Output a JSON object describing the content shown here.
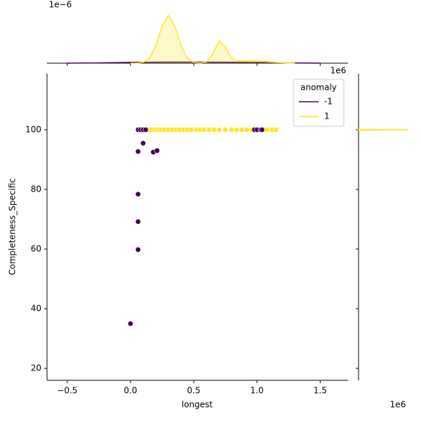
{
  "chart_data": {
    "type": "scatter",
    "x_label": "longest",
    "y_label": "Completeness_Specific",
    "x_offset": "1e6",
    "legend_title": "anomaly",
    "legend": "upper right",
    "xlim": [
      -0.66,
      1.72
    ],
    "ylim": [
      16,
      118.8
    ],
    "xticks": [
      {
        "value": -0.5,
        "label": "−0.5"
      },
      {
        "value": 0,
        "label": "0.0"
      },
      {
        "value": 0.5,
        "label": "0.5"
      },
      {
        "value": 1,
        "label": "1.0"
      },
      {
        "value": 1.5,
        "label": "1.5"
      }
    ],
    "yticks": [
      20,
      40,
      60,
      80,
      100
    ],
    "series": [
      {
        "name": "-1",
        "color": "#440154",
        "x": [
          0.0,
          0.06,
          0.06,
          0.06,
          0.06,
          0.1,
          0.18,
          0.21,
          0.06,
          0.08,
          0.1,
          0.12,
          0.98,
          1.0,
          1.03,
          1.04
        ],
        "values": [
          35,
          59.8,
          69.2,
          78.4,
          92.7,
          95.5,
          92.5,
          93,
          100,
          100,
          100,
          100,
          100,
          100,
          100,
          100
        ]
      },
      {
        "name": "1",
        "color": "#fde725",
        "x": [
          0.13,
          0.15,
          0.17,
          0.19,
          0.21,
          0.23,
          0.25,
          0.27,
          0.3,
          0.33,
          0.36,
          0.39,
          0.42,
          0.45,
          0.48,
          0.52,
          0.55,
          0.58,
          0.62,
          0.66,
          0.7,
          0.75,
          0.8,
          0.84,
          0.88,
          0.92,
          0.96,
          1.0,
          1.02,
          1.05,
          1.08,
          1.12,
          1.15
        ],
        "values": [
          100,
          100,
          100,
          100,
          100,
          100,
          100,
          100,
          100,
          100,
          100,
          100,
          100,
          100,
          100,
          100,
          100,
          100,
          100,
          100,
          100,
          100,
          100,
          100,
          100,
          100,
          100,
          100,
          100,
          100,
          100,
          100,
          100
        ]
      }
    ],
    "marginal_top": {
      "offset": "1e−6",
      "ylim": [
        0,
        2
      ],
      "series": [
        {
          "color": "#440154",
          "x": [
            -0.5,
            -0.25,
            0,
            0.25,
            0.5,
            0.75,
            1,
            1.25,
            1.5
          ],
          "values": [
            0,
            0.01,
            0.03,
            0.04,
            0.04,
            0.035,
            0.03,
            0.01,
            0
          ]
        },
        {
          "color": "#fde725",
          "x": [
            0,
            0.05,
            0.1,
            0.15,
            0.2,
            0.25,
            0.3,
            0.35,
            0.4,
            0.45,
            0.5,
            0.55,
            0.6,
            0.65,
            0.7,
            0.75,
            0.8,
            0.85,
            0.9,
            0.95,
            1,
            1.05,
            1.1,
            1.15,
            1.2,
            1.25,
            1.3
          ],
          "values": [
            0,
            0,
            0.03,
            0.18,
            0.65,
            1.39,
            1.8,
            1.39,
            0.65,
            0.18,
            0.03,
            0.01,
            0.04,
            0.35,
            0.83,
            0.6,
            0.16,
            0.08,
            0.09,
            0.1,
            0.09,
            0.07,
            0.05,
            0.03,
            0.015,
            0.005,
            0
          ]
        }
      ]
    },
    "marginal_right": {
      "xlim": [
        0,
        1
      ],
      "series": [
        {
          "color": "#fde725",
          "y": [
            99.8,
            99.9,
            100,
            100.1,
            100.2
          ],
          "values": [
            0,
            0,
            1,
            0,
            0
          ]
        }
      ]
    }
  }
}
